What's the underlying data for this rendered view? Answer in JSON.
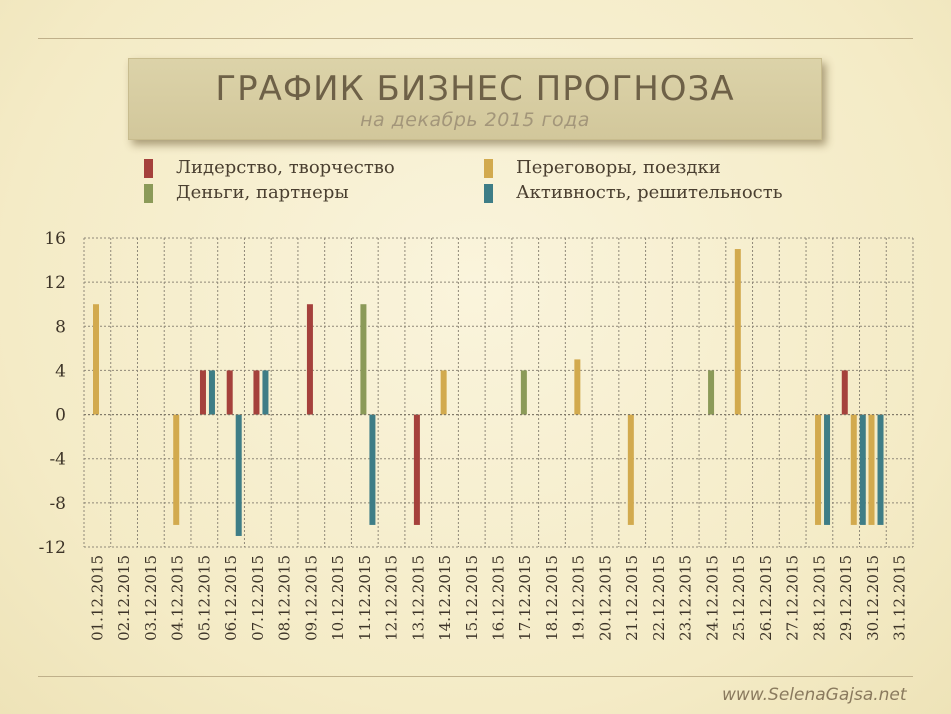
{
  "header": {
    "title": "ГРАФИК БИЗНЕС ПРОГНОЗА",
    "subtitle": "на декабрь 2015 года"
  },
  "legend": [
    {
      "name": "Лидерство, творчество",
      "color": "#a5413c"
    },
    {
      "name": "Переговоры, поездки",
      "color": "#d2aa4e"
    },
    {
      "name": "Деньги, партнеры",
      "color": "#8b9a58"
    },
    {
      "name": "Активность, решительность",
      "color": "#3e7d86"
    }
  ],
  "footer": {
    "watermark": "www.SelenaGajsa.net"
  },
  "chart_data": {
    "type": "bar",
    "ylim": [
      -12,
      16
    ],
    "yticks": [
      "16",
      "12",
      "8",
      "4",
      "0",
      "-4",
      "-8",
      "-12"
    ],
    "ytick_values": [
      16,
      12,
      8,
      4,
      0,
      -4,
      -8,
      -12
    ],
    "grid": true,
    "categories": [
      "01.12.2015",
      "02.12.2015",
      "03.12.2015",
      "04.12.2015",
      "05.12.2015",
      "06.12.2015",
      "07.12.2015",
      "08.12.2015",
      "09.12.2015",
      "10.12.2015",
      "11.12.2015",
      "12.12.2015",
      "13.12.2015",
      "14.12.2015",
      "15.12.2015",
      "16.12.2015",
      "17.12.2015",
      "18.12.2015",
      "19.12.2015",
      "20.12.2015",
      "21.12.2015",
      "22.12.2015",
      "23.12.2015",
      "24.12.2015",
      "25.12.2015",
      "26.12.2015",
      "27.12.2015",
      "28.12.2015",
      "29.12.2015",
      "30.12.2015",
      "31.12.2015"
    ],
    "series": [
      {
        "name": "Лидерство, творчество",
        "color": "#a5413c",
        "values": [
          0,
          0,
          0,
          0,
          4,
          4,
          4,
          0,
          10,
          0,
          0,
          0,
          -10,
          0,
          0,
          0,
          0,
          0,
          0,
          0,
          0,
          0,
          0,
          0,
          0,
          0,
          0,
          0,
          4,
          0,
          0
        ]
      },
      {
        "name": "Переговоры, поездки",
        "color": "#d2aa4e",
        "values": [
          10,
          0,
          0,
          -10,
          0,
          0,
          0,
          0,
          0,
          0,
          0,
          0,
          0,
          4,
          0,
          0,
          0,
          0,
          5,
          0,
          -10,
          0,
          0,
          0,
          15,
          0,
          0,
          -10,
          -10,
          -10,
          0
        ]
      },
      {
        "name": "Деньги, партнеры",
        "color": "#8b9a58",
        "values": [
          0,
          0,
          0,
          0,
          0,
          0,
          0,
          0,
          0,
          0,
          10,
          0,
          0,
          0,
          0,
          0,
          4,
          0,
          0,
          0,
          0,
          0,
          0,
          4,
          0,
          0,
          0,
          0,
          0,
          0,
          0
        ]
      },
      {
        "name": "Активность, решительность",
        "color": "#3e7d86",
        "values": [
          0,
          0,
          0,
          0,
          4,
          -11,
          4,
          0,
          0,
          0,
          -10,
          0,
          0,
          0,
          0,
          0,
          0,
          0,
          0,
          0,
          0,
          0,
          0,
          0,
          0,
          0,
          0,
          -10,
          -10,
          -10,
          0
        ]
      }
    ]
  }
}
